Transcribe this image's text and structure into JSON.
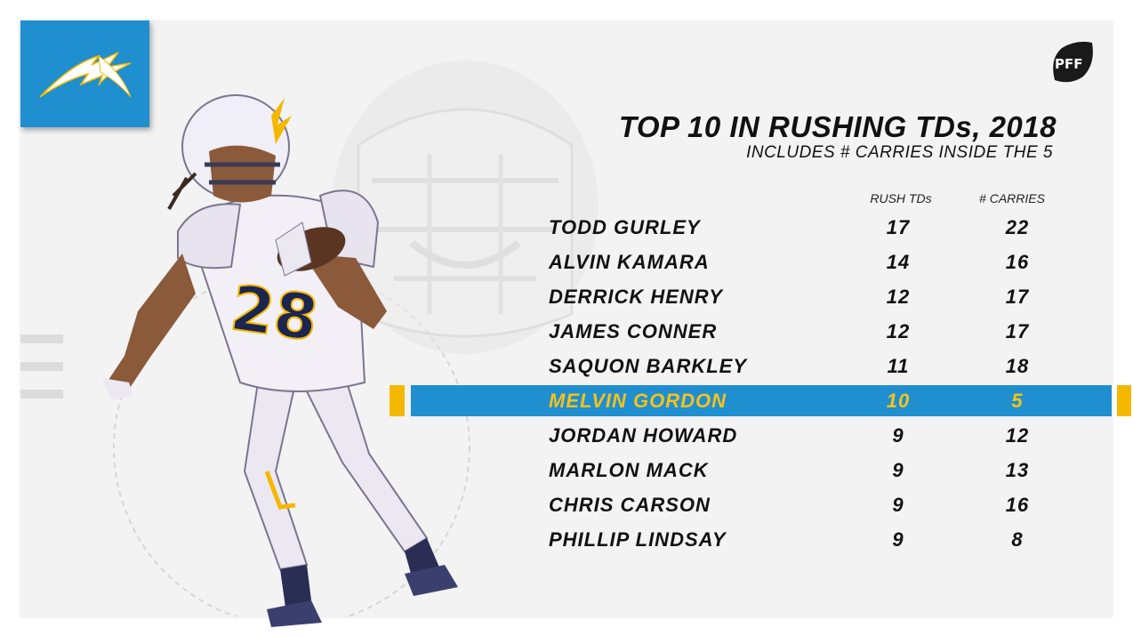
{
  "colors": {
    "chargers_blue": "#1f8fd0",
    "chargers_gold": "#f5b800",
    "text": "#111111",
    "background": "#f3f3f3"
  },
  "branding": {
    "team_logo_icon": "chargers-lightning-bolt-icon",
    "publisher_logo_icon": "pff-football-icon",
    "publisher_logo_text": "PFF"
  },
  "header": {
    "title": "TOP 10 IN RUSHING TDs, 2018",
    "subtitle": "INCLUDES # CARRIES INSIDE THE 5"
  },
  "chart_data": {
    "type": "table",
    "title": "TOP 10 IN RUSHING TDs, 2018",
    "subtitle": "INCLUDES # CARRIES INSIDE THE 5",
    "columns": [
      "",
      "RUSH TDs",
      "# CARRIES"
    ],
    "highlighted_row": "MELVIN GORDON",
    "rows": [
      {
        "name": "TODD GURLEY",
        "rush_tds": 17,
        "carries": 22
      },
      {
        "name": "ALVIN KAMARA",
        "rush_tds": 14,
        "carries": 16
      },
      {
        "name": "DERRICK HENRY",
        "rush_tds": 12,
        "carries": 17
      },
      {
        "name": "JAMES CONNER",
        "rush_tds": 12,
        "carries": 17
      },
      {
        "name": "SAQUON BARKLEY",
        "rush_tds": 11,
        "carries": 18
      },
      {
        "name": "MELVIN GORDON",
        "rush_tds": 10,
        "carries": 5
      },
      {
        "name": "JORDAN HOWARD",
        "rush_tds": 9,
        "carries": 12
      },
      {
        "name": "MARLON MACK",
        "rush_tds": 9,
        "carries": 13
      },
      {
        "name": "CHRIS CARSON",
        "rush_tds": 9,
        "carries": 16
      },
      {
        "name": "PHILLIP LINDSAY",
        "rush_tds": 9,
        "carries": 8
      }
    ]
  }
}
